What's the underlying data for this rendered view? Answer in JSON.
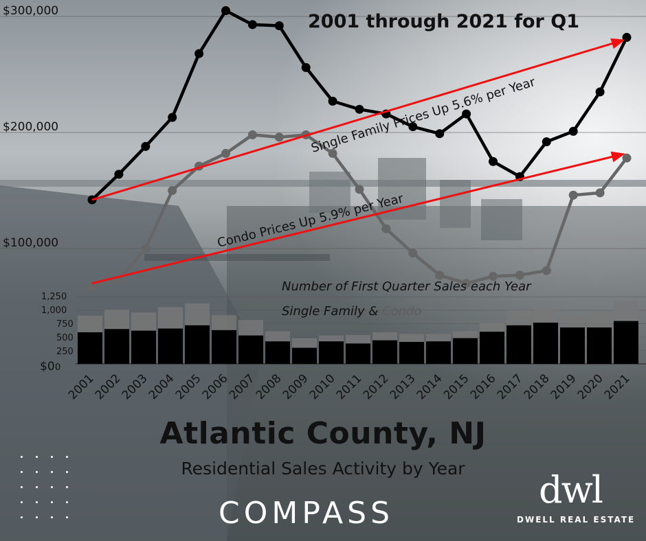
{
  "chart_data": [
    {
      "type": "line",
      "title": "2001 through 2021 for Q1",
      "x": [
        2001,
        2002,
        2003,
        2004,
        2005,
        2006,
        2007,
        2008,
        2009,
        2010,
        2011,
        2012,
        2013,
        2014,
        2015,
        2016,
        2017,
        2018,
        2019,
        2020,
        2021
      ],
      "yticks": [
        "$100,000",
        "$200,000",
        "$300,000"
      ],
      "ylim": [
        20000,
        310000
      ],
      "series": [
        {
          "name": "Single Family",
          "color": "#000000",
          "values": [
            142000,
            164000,
            188000,
            213000,
            268000,
            305000,
            293000,
            292000,
            256000,
            227000,
            220000,
            216000,
            205000,
            199000,
            216000,
            175000,
            162000,
            192000,
            201000,
            235000,
            282000
          ]
        },
        {
          "name": "Condo",
          "color": "#666666",
          "values": [
            67000,
            73000,
            100000,
            150000,
            171000,
            182000,
            198000,
            196000,
            198000,
            182000,
            151000,
            117000,
            96000,
            77000,
            70000,
            76000,
            77000,
            81000,
            146000,
            148000,
            178000
          ]
        }
      ],
      "trend_arrows": [
        {
          "label": "Single Family Prices Up 5.6% per Year",
          "from": [
            2001,
            142000
          ],
          "to": [
            2021,
            279000
          ],
          "color": "#ee1111"
        },
        {
          "label": "Condo Prices Up 5.9% per Year",
          "from": [
            2001,
            70000
          ],
          "to": [
            2021,
            181000
          ],
          "color": "#ee1111"
        }
      ],
      "grid": true
    },
    {
      "type": "bar",
      "stacked": true,
      "annotation_line1": "Number of First Quarter Sales each Year",
      "annotation_sf": "Single Family &",
      "annotation_condo": "Condo",
      "categories": [
        "2001",
        "2002",
        "2003",
        "2004",
        "2005",
        "2006",
        "2007",
        "2008",
        "2009",
        "2010",
        "2011",
        "2012",
        "2013",
        "2014",
        "2015",
        "2016",
        "2017",
        "2018",
        "2019",
        "2020",
        "2021"
      ],
      "yticks": [
        "1,250",
        "1,000",
        "750",
        "500",
        "250",
        "$0",
        "0"
      ],
      "ylim": [
        0,
        1250
      ],
      "series": [
        {
          "name": "Single Family",
          "color": "#000000",
          "values": [
            590,
            650,
            620,
            660,
            720,
            630,
            530,
            420,
            300,
            420,
            380,
            440,
            410,
            420,
            480,
            600,
            720,
            770,
            680,
            680,
            800
          ]
        },
        {
          "name": "Condo",
          "color": "#777777",
          "values": [
            310,
            360,
            340,
            400,
            410,
            280,
            290,
            190,
            180,
            110,
            160,
            150,
            150,
            140,
            130,
            170,
            280,
            250,
            240,
            300,
            370
          ]
        }
      ]
    }
  ],
  "headline": "Atlantic County, NJ",
  "subheadline": "Residential Sales Activity by Year",
  "brand": {
    "compass": "COMPASS",
    "dwl_logo": "dwl",
    "dwl_name": "DWELL REAL ESTATE"
  },
  "colors": {
    "trend_arrow": "#ee1111",
    "text": "#111111"
  }
}
